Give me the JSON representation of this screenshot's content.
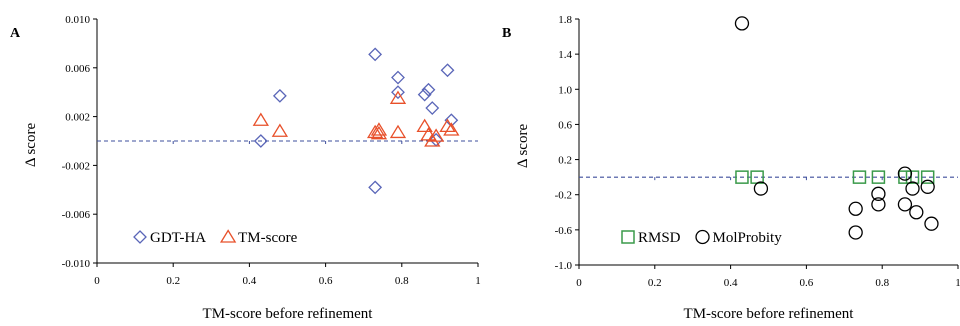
{
  "chart_data": [
    {
      "panel_label": "A",
      "type": "scatter",
      "xlabel": "TM-score before refinement",
      "ylabel": "Δ score",
      "xlim": [
        0,
        1
      ],
      "ylim": [
        -0.01,
        0.01
      ],
      "x_ticks": [
        "0",
        "0.2",
        "0.4",
        "0.6",
        "0.8",
        "1"
      ],
      "y_ticks": [
        "-0.010",
        "-0.006",
        "-0.002",
        "0.002",
        "0.006",
        "0.010"
      ],
      "reference_line": 0,
      "grid": false,
      "legend_position": "bottom-left",
      "series": [
        {
          "name": "GDT-HA",
          "marker": "diamond",
          "color": "#5a66b8",
          "points": [
            [
              0.43,
              0.0
            ],
            [
              0.48,
              0.0037
            ],
            [
              0.73,
              0.0071
            ],
            [
              0.73,
              -0.0038
            ],
            [
              0.79,
              0.0052
            ],
            [
              0.79,
              0.004
            ],
            [
              0.86,
              0.0038
            ],
            [
              0.87,
              0.0042
            ],
            [
              0.88,
              0.0027
            ],
            [
              0.92,
              0.0058
            ],
            [
              0.93,
              0.0017
            ],
            [
              0.89,
              0.0001
            ]
          ]
        },
        {
          "name": "TM-score",
          "marker": "triangle",
          "color": "#e8502a",
          "points": [
            [
              0.43,
              0.0017
            ],
            [
              0.48,
              0.0008
            ],
            [
              0.73,
              0.0007
            ],
            [
              0.74,
              0.0009
            ],
            [
              0.74,
              0.0006
            ],
            [
              0.79,
              0.0007
            ],
            [
              0.79,
              0.0035
            ],
            [
              0.86,
              0.0012
            ],
            [
              0.87,
              0.0005
            ],
            [
              0.88,
              0.0
            ],
            [
              0.89,
              0.0004
            ],
            [
              0.92,
              0.0012
            ],
            [
              0.93,
              0.0009
            ]
          ]
        }
      ]
    },
    {
      "panel_label": "B",
      "type": "scatter",
      "xlabel": "TM-score before refinement",
      "ylabel": "Δ score",
      "xlim": [
        0,
        1
      ],
      "ylim": [
        -1.0,
        1.8
      ],
      "x_ticks": [
        "0",
        "0.2",
        "0.4",
        "0.6",
        "0.8",
        "1"
      ],
      "y_ticks": [
        "-1.0",
        "-0.6",
        "-0.2",
        "0.2",
        "0.6",
        "1.0",
        "1.4",
        "1.8"
      ],
      "reference_line": 0,
      "grid": false,
      "legend_position": "bottom-left",
      "series": [
        {
          "name": "RMSD",
          "marker": "square",
          "color": "#3a9a4a",
          "points": [
            [
              0.43,
              0.0
            ],
            [
              0.47,
              0.0
            ],
            [
              0.74,
              0.0
            ],
            [
              0.79,
              0.0
            ],
            [
              0.86,
              0.0
            ],
            [
              0.88,
              0.0
            ],
            [
              0.92,
              0.0
            ]
          ]
        },
        {
          "name": "MolProbity",
          "marker": "circle",
          "color": "#000000",
          "points": [
            [
              0.43,
              1.75
            ],
            [
              0.48,
              -0.13
            ],
            [
              0.73,
              -0.36
            ],
            [
              0.73,
              -0.63
            ],
            [
              0.79,
              -0.19
            ],
            [
              0.79,
              -0.31
            ],
            [
              0.86,
              0.04
            ],
            [
              0.86,
              -0.31
            ],
            [
              0.88,
              -0.13
            ],
            [
              0.89,
              -0.4
            ],
            [
              0.92,
              -0.11
            ],
            [
              0.93,
              -0.53
            ]
          ]
        }
      ]
    }
  ]
}
